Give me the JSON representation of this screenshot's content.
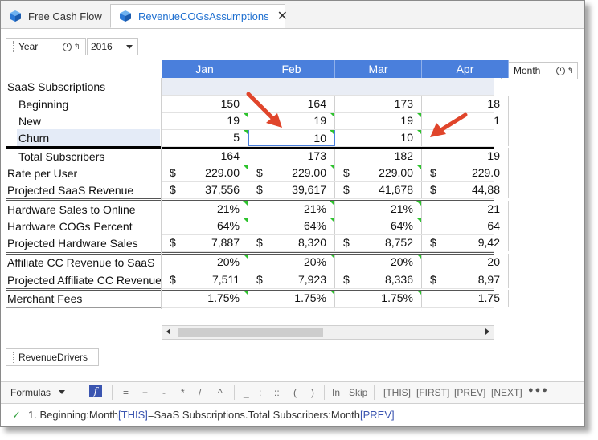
{
  "tabs": [
    {
      "label": "Free Cash Flow",
      "active": false
    },
    {
      "label": "RevenueCOGsAssumptions",
      "active": true
    }
  ],
  "tab_close_glyph": "✕",
  "year_dim": {
    "label": "Year",
    "value": "2016"
  },
  "month_dim": {
    "label": "Month"
  },
  "months": [
    "Jan",
    "Feb",
    "Mar",
    "Apr"
  ],
  "rows": [
    {
      "label": "SaaS Subscriptions",
      "indent": 0,
      "type": "header",
      "cells": [
        "",
        "",
        "",
        ""
      ]
    },
    {
      "label": "Beginning",
      "indent": 1,
      "type": "num",
      "cells": [
        "150",
        "164",
        "173",
        "18"
      ]
    },
    {
      "label": "New",
      "indent": 1,
      "type": "num",
      "cells": [
        "19",
        "19",
        "19",
        "1"
      ]
    },
    {
      "label": "Churn",
      "indent": 1,
      "type": "num",
      "cells": [
        "5",
        "10",
        "10",
        ""
      ]
    },
    {
      "label": "Total Subscribers",
      "indent": 1,
      "type": "num",
      "cells": [
        "164",
        "173",
        "182",
        "19"
      ]
    },
    {
      "label": "Rate per User",
      "indent": 0,
      "type": "cur",
      "cells": [
        "229.00",
        "229.00",
        "229.00",
        "229.0"
      ]
    },
    {
      "label": "Projected SaaS Revenue",
      "indent": 0,
      "type": "cur",
      "cells": [
        "37,556",
        "39,617",
        "41,678",
        "44,88"
      ]
    },
    {
      "label": "Hardware Sales to Online",
      "indent": 0,
      "type": "num",
      "cells": [
        "21%",
        "21%",
        "21%",
        "21"
      ]
    },
    {
      "label": "Hardware COGs Percent",
      "indent": 0,
      "type": "num",
      "cells": [
        "64%",
        "64%",
        "64%",
        "64"
      ]
    },
    {
      "label": "Projected Hardware Sales",
      "indent": 0,
      "type": "cur",
      "cells": [
        "7,887",
        "8,320",
        "8,752",
        "9,42"
      ]
    },
    {
      "label": "Affiliate CC Revenue to SaaS",
      "indent": 0,
      "type": "num",
      "cells": [
        "20%",
        "20%",
        "20%",
        "20"
      ]
    },
    {
      "label": "Projected Affiliate CC Revenue",
      "indent": 0,
      "type": "cur",
      "cells": [
        "7,511",
        "7,923",
        "8,336",
        "8,97"
      ]
    },
    {
      "label": "Merchant Fees",
      "indent": 0,
      "type": "num",
      "cells": [
        "1.75%",
        "1.75%",
        "1.75%",
        "1.75"
      ]
    }
  ],
  "currency_symbol": "$",
  "revenue_drivers_label": "RevenueDrivers",
  "formulas_toolbar": {
    "label": "Formulas",
    "f_label": "f",
    "operators": [
      "=",
      "+",
      "-",
      "*",
      "/",
      "^",
      "_",
      ":",
      "::",
      "(",
      ")"
    ],
    "keywords": [
      "In",
      "Skip",
      "[THIS]",
      "[FIRST]",
      "[PREV]",
      "[NEXT]"
    ],
    "more": "●●●"
  },
  "formula_line": {
    "check": "✓",
    "number": "1.",
    "part1": "Beginning:Month",
    "part2": "[THIS]",
    "part3": "=SaaS Subscriptions.Total Subscribers:Month",
    "part4": "[PREV]"
  },
  "colors": {
    "header_blue": "#4a7fdc",
    "accent_blue": "#1e6fd0",
    "arrow_red": "#e0452b",
    "marker_green": "#2dc32d"
  }
}
